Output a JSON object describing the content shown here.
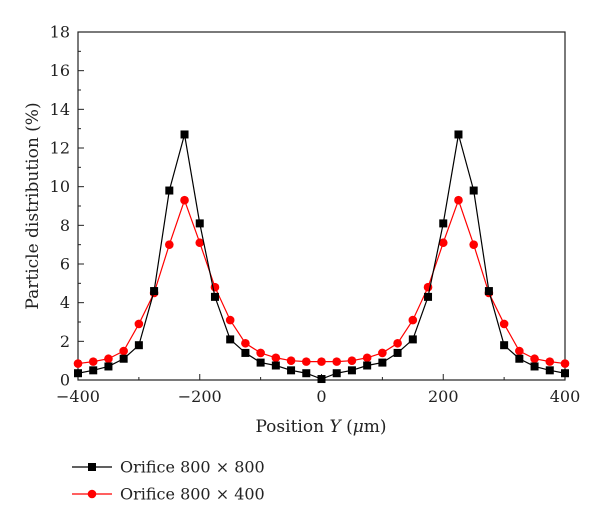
{
  "chart_data": {
    "type": "line",
    "xlabel": "Position Y (μm)",
    "xlabel_parts": {
      "before": "Position ",
      "var": "Y",
      "after": " (",
      "unit_greek": "μ",
      "unit_rest": "m)"
    },
    "ylabel": "Particle distribution (%)",
    "xlim": [
      -400,
      400
    ],
    "ylim": [
      0,
      18
    ],
    "x_ticks": [
      "−400",
      "−200",
      "0",
      "200",
      "400"
    ],
    "x_tick_values": [
      -400,
      -200,
      0,
      200,
      400
    ],
    "y_ticks": [
      "0",
      "2",
      "4",
      "6",
      "8",
      "10",
      "12",
      "14",
      "16",
      "18"
    ],
    "y_tick_values": [
      0,
      2,
      4,
      6,
      8,
      10,
      12,
      14,
      16,
      18
    ],
    "grid": false,
    "legend_position": "bottom-left",
    "x": [
      -400,
      -375,
      -350,
      -325,
      -300,
      -275,
      -250,
      -225,
      -200,
      -175,
      -150,
      -125,
      -100,
      -75,
      -50,
      -25,
      0,
      25,
      50,
      75,
      100,
      125,
      150,
      175,
      200,
      225,
      250,
      275,
      300,
      325,
      350,
      375,
      400
    ],
    "series": [
      {
        "name": "Orifice 800 × 800",
        "color": "#000000",
        "marker": "square",
        "values": [
          0.35,
          0.5,
          0.7,
          1.1,
          1.8,
          4.6,
          9.8,
          12.7,
          8.1,
          4.3,
          2.1,
          1.4,
          0.9,
          0.75,
          0.5,
          0.35,
          0.05,
          0.35,
          0.5,
          0.75,
          0.9,
          1.4,
          2.1,
          4.3,
          8.1,
          12.7,
          9.8,
          4.6,
          1.8,
          1.1,
          0.7,
          0.5,
          0.35
        ]
      },
      {
        "name": "Orifice 800 × 400",
        "color": "#ff0000",
        "marker": "circle",
        "values": [
          0.85,
          0.95,
          1.1,
          1.5,
          2.9,
          4.5,
          7.0,
          9.3,
          7.1,
          4.8,
          3.1,
          1.9,
          1.4,
          1.15,
          1.0,
          0.95,
          0.95,
          0.95,
          1.0,
          1.15,
          1.4,
          1.9,
          3.1,
          4.8,
          7.1,
          9.3,
          7.0,
          4.5,
          2.9,
          1.5,
          1.1,
          0.95,
          0.85
        ]
      }
    ]
  }
}
